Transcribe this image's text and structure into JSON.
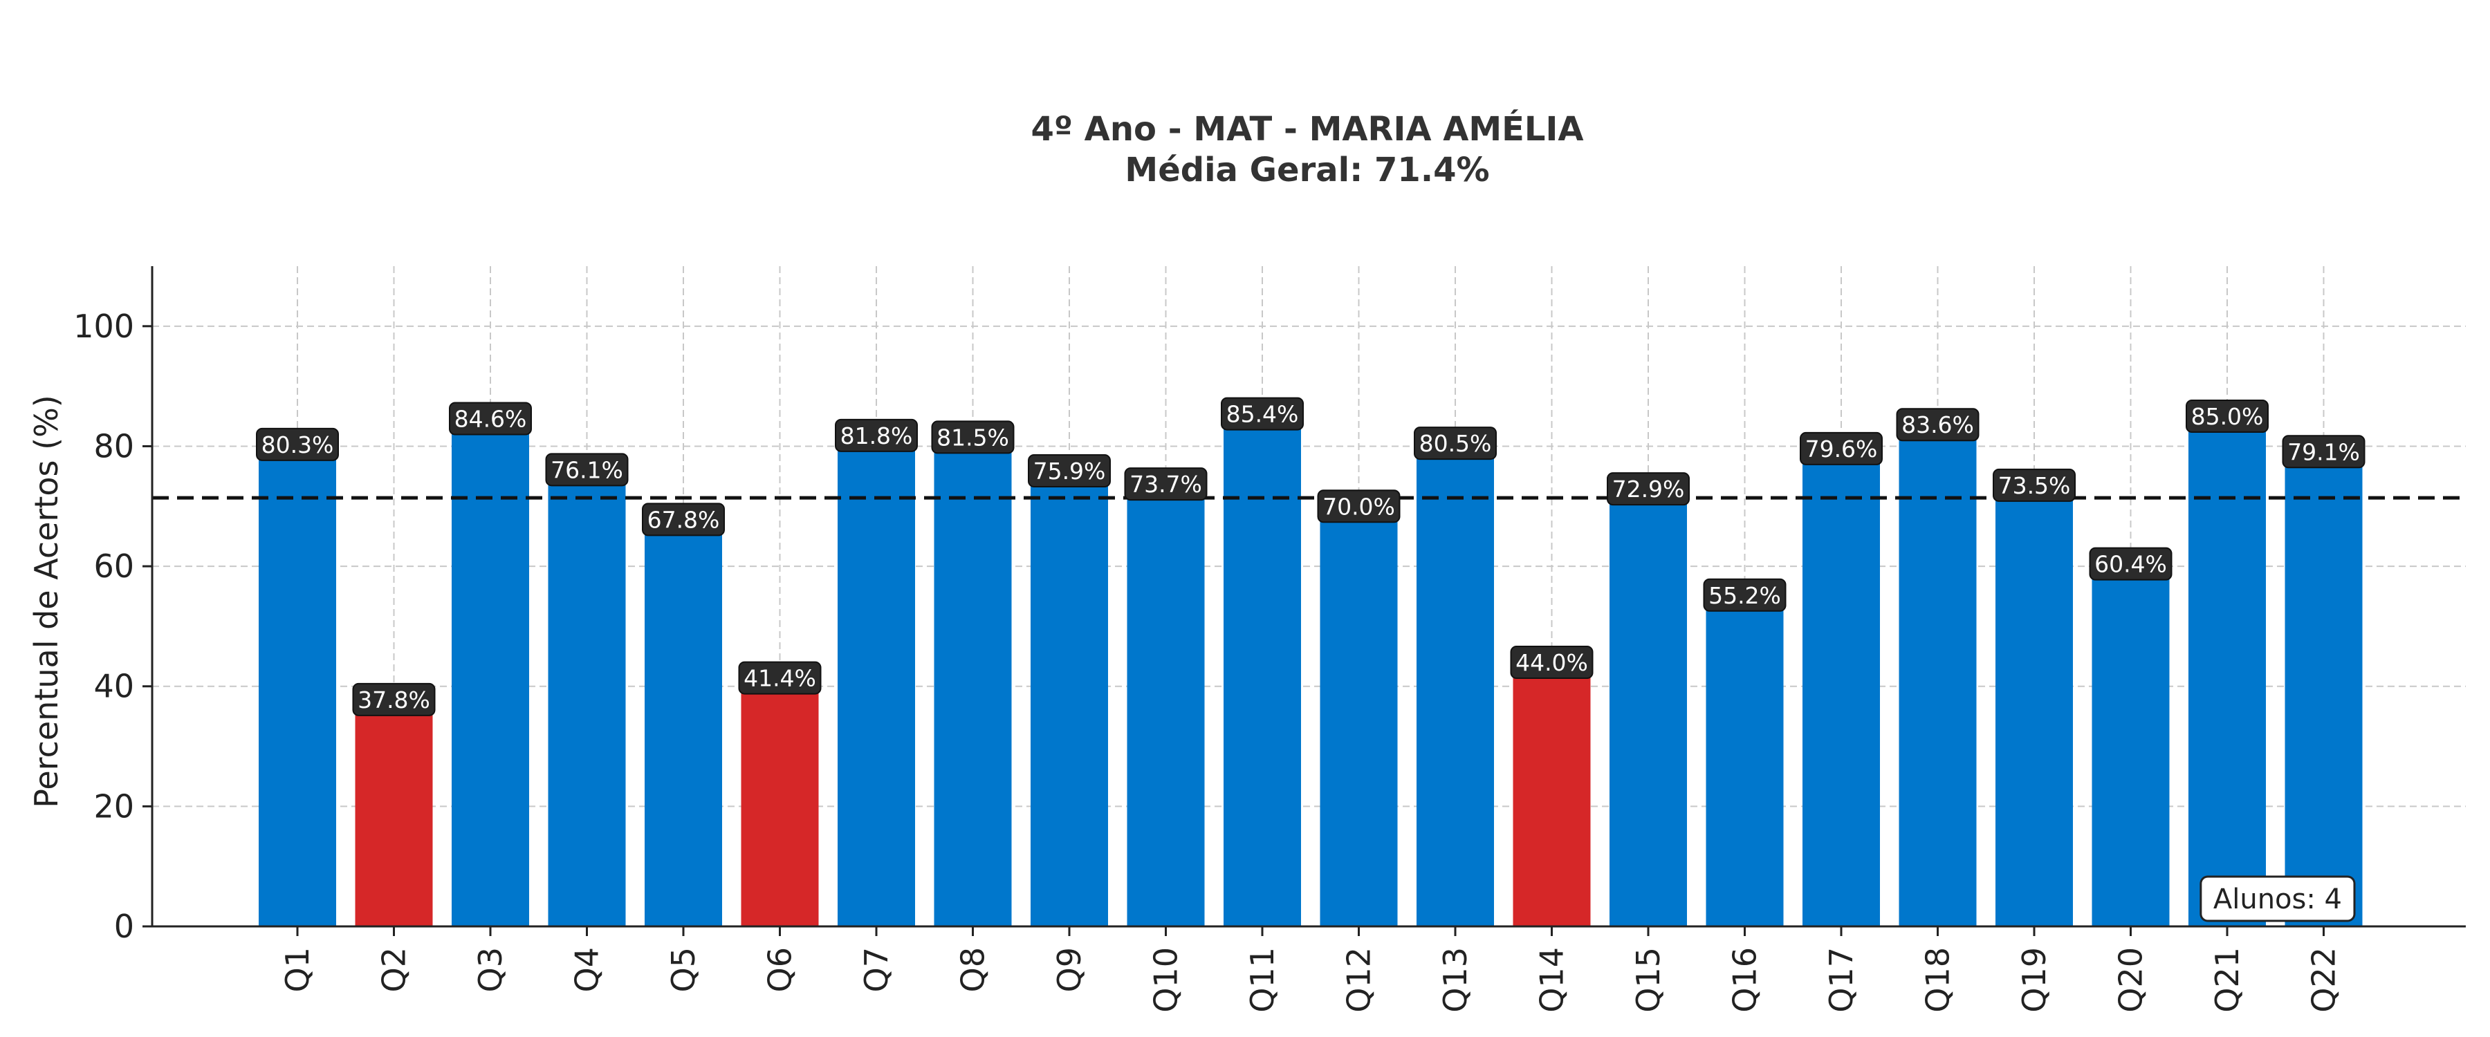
{
  "chart_data": {
    "type": "bar",
    "title": "4º Ano - MAT - MARIA AMÉLIA",
    "subtitle": "Média Geral: 71.4%",
    "ylabel": "Percentual de Acertos (%)",
    "xlabel": "",
    "categories": [
      "Q1",
      "Q2",
      "Q3",
      "Q4",
      "Q5",
      "Q6",
      "Q7",
      "Q8",
      "Q9",
      "Q10",
      "Q11",
      "Q12",
      "Q13",
      "Q14",
      "Q15",
      "Q16",
      "Q17",
      "Q18",
      "Q19",
      "Q20",
      "Q21",
      "Q22"
    ],
    "values": [
      80.3,
      37.8,
      84.6,
      76.1,
      67.8,
      41.4,
      81.8,
      81.5,
      75.9,
      73.7,
      85.4,
      70.0,
      80.5,
      44.0,
      72.9,
      55.2,
      79.6,
      83.6,
      73.5,
      60.4,
      85.0,
      79.1
    ],
    "data_labels": [
      "80.3%",
      "37.8%",
      "84.6%",
      "76.1%",
      "67.8%",
      "41.4%",
      "81.8%",
      "81.5%",
      "75.9%",
      "73.7%",
      "85.4%",
      "70.0%",
      "80.5%",
      "44.0%",
      "72.9%",
      "55.2%",
      "79.6%",
      "83.6%",
      "73.5%",
      "60.4%",
      "85.0%",
      "79.1%"
    ],
    "bar_colors": [
      "#0077CC",
      "#D62728",
      "#0077CC",
      "#0077CC",
      "#0077CC",
      "#D62728",
      "#0077CC",
      "#0077CC",
      "#0077CC",
      "#0077CC",
      "#0077CC",
      "#0077CC",
      "#0077CC",
      "#D62728",
      "#0077CC",
      "#0077CC",
      "#0077CC",
      "#0077CC",
      "#0077CC",
      "#0077CC",
      "#0077CC",
      "#0077CC"
    ],
    "mean_line": 71.4,
    "ylim": [
      0,
      110
    ],
    "yticks": [
      0,
      20,
      40,
      60,
      80,
      100
    ],
    "grid": true,
    "annotation": "Alunos: 4",
    "annotation_position": "bottom-right",
    "colors": {
      "bar_default": "#0077CC",
      "bar_low": "#D62728",
      "label_box": "#2b2b2b",
      "mean_line": "#111111",
      "grid": "#c8c8c8"
    }
  }
}
